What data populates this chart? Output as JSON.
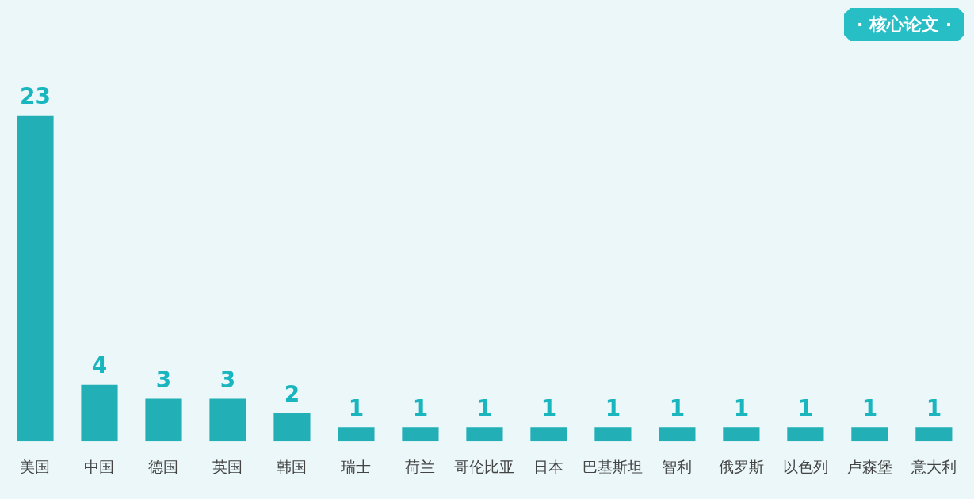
{
  "chart_data": {
    "type": "bar",
    "title": "· 核心论文 ·",
    "categories": [
      "美国",
      "中国",
      "德国",
      "英国",
      "韩国",
      "瑞士",
      "荷兰",
      "哥伦比亚",
      "日本",
      "巴基斯坦",
      "智利",
      "俄罗斯",
      "以色列",
      "卢森堡",
      "意大利"
    ],
    "values": [
      23,
      4,
      3,
      3,
      2,
      1,
      1,
      1,
      1,
      1,
      1,
      1,
      1,
      1,
      1
    ],
    "color": "#22afb6",
    "data_labels": true
  }
}
